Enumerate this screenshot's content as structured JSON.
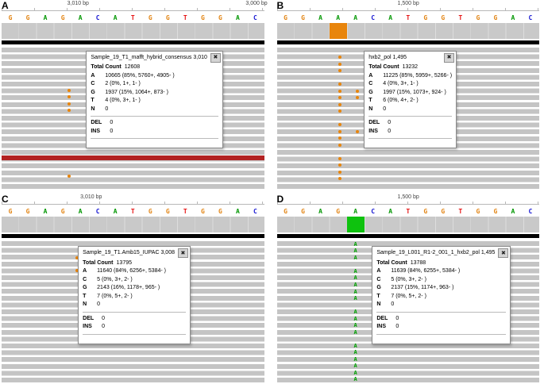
{
  "colors": {
    "base_A": "#009600",
    "base_C": "#1414d2",
    "base_G": "#e28413",
    "base_T": "#e61313",
    "coverage_gray": "#c9c9c9",
    "read_gray": "#c4c4c4",
    "mismatch_orange": "#e8850c",
    "mismatch_green": "#00a000",
    "coverage_highlight_b": "#e8850c",
    "coverage_highlight_d": "#0ec20e",
    "discordant_read_red": "#b22222"
  },
  "panels": [
    {
      "label": "A",
      "ruler_center": "3,010 bp",
      "ruler_right": "3,000 bp",
      "sequence": [
        "G",
        "G",
        "A",
        "G",
        "A",
        "C",
        "A",
        "T",
        "G",
        "G",
        "T",
        "G",
        "G",
        "A",
        "C"
      ],
      "popup": {
        "title": "Sample_19_T1_mafft_hybrid_consensus 3,010",
        "close_glyph": "✖",
        "total_label": "Total Count",
        "total_value": "12608",
        "counts": [
          {
            "base": "A",
            "value": "10665 (85%, 5760+, 4905- )"
          },
          {
            "base": "C",
            "value": "2 (0%, 1+, 1- )"
          },
          {
            "base": "G",
            "value": "1937 (15%, 1064+, 873- )"
          },
          {
            "base": "T",
            "value": "4 (0%, 3+, 1- )"
          },
          {
            "base": "N",
            "value": "0"
          }
        ],
        "del_label": "DEL",
        "del_value": "0",
        "ins_label": "INS",
        "ins_value": "0"
      },
      "markers": [
        {
          "x": 25.7,
          "y": 29.0,
          "color": "#e8850c"
        },
        {
          "x": 25.7,
          "y": 33.8,
          "color": "#e8850c"
        },
        {
          "x": 25.7,
          "y": 38.6,
          "color": "#e8850c"
        },
        {
          "x": 25.7,
          "y": 43.4,
          "color": "#e8850c"
        },
        {
          "x": 25.7,
          "y": 90.0,
          "color": "#e8850c"
        }
      ]
    },
    {
      "label": "B",
      "ruler_center": "1,500 bp",
      "sequence": [
        "G",
        "G",
        "A",
        "A",
        "A",
        "C",
        "A",
        "T",
        "G",
        "G",
        "T",
        "G",
        "G",
        "A",
        "C"
      ],
      "popup": {
        "title": "hxb2_pol 1,495",
        "close_glyph": "✖",
        "total_label": "Total Count",
        "total_value": "13232",
        "counts": [
          {
            "base": "A",
            "value": "11225 (85%, 5959+, 5266- )"
          },
          {
            "base": "C",
            "value": "4 (0%, 3+, 1- )"
          },
          {
            "base": "G",
            "value": "1997 (15%, 1073+, 924- )"
          },
          {
            "base": "T",
            "value": "6 (0%, 4+, 2- )"
          },
          {
            "base": "N",
            "value": "0"
          }
        ],
        "del_label": "DEL",
        "del_value": "0",
        "ins_label": "INS",
        "ins_value": "0"
      },
      "markers": [
        {
          "x": 24.0,
          "y": 5.6,
          "color": "#e8850c"
        },
        {
          "x": 24.0,
          "y": 10.4,
          "color": "#e8850c"
        },
        {
          "x": 24.0,
          "y": 15.2,
          "color": "#e8850c"
        },
        {
          "x": 24.0,
          "y": 24.7,
          "color": "#e8850c"
        },
        {
          "x": 24.0,
          "y": 29.5,
          "color": "#e8850c"
        },
        {
          "x": 24.0,
          "y": 34.3,
          "color": "#e8850c"
        },
        {
          "x": 24.0,
          "y": 39.1,
          "color": "#e8850c"
        },
        {
          "x": 24.0,
          "y": 43.8,
          "color": "#e8850c"
        },
        {
          "x": 24.0,
          "y": 53.4,
          "color": "#e8850c"
        },
        {
          "x": 24.0,
          "y": 58.2,
          "color": "#e8850c"
        },
        {
          "x": 24.0,
          "y": 62.9,
          "color": "#e8850c"
        },
        {
          "x": 24.0,
          "y": 67.7,
          "color": "#e8850c"
        },
        {
          "x": 24.0,
          "y": 77.3,
          "color": "#e8850c"
        },
        {
          "x": 24.0,
          "y": 82.1,
          "color": "#e8850c"
        },
        {
          "x": 24.0,
          "y": 86.8,
          "color": "#e8850c"
        },
        {
          "x": 24.0,
          "y": 91.6,
          "color": "#e8850c"
        },
        {
          "x": 30.7,
          "y": 29.5,
          "color": "#e8850c"
        },
        {
          "x": 30.7,
          "y": 34.3,
          "color": "#e8850c"
        },
        {
          "x": 30.7,
          "y": 58.2,
          "color": "#e8850c"
        }
      ]
    },
    {
      "label": "C",
      "ruler_center": "3,010 bp",
      "sequence": [
        "G",
        "G",
        "A",
        "G",
        "A",
        "C",
        "A",
        "T",
        "G",
        "G",
        "T",
        "G",
        "G",
        "A",
        "C"
      ],
      "popup": {
        "title": "Sample_19_T1.Amb15_IUPAC 3,008",
        "close_glyph": "✖",
        "total_label": "Total Count",
        "total_value": "13795",
        "counts": [
          {
            "base": "A",
            "value": "11640 (84%, 6256+, 5384- )"
          },
          {
            "base": "C",
            "value": "5 (0%, 3+, 2- )"
          },
          {
            "base": "G",
            "value": "2143 (16%, 1178+, 965- )"
          },
          {
            "base": "T",
            "value": "7 (0%, 5+, 2- )"
          },
          {
            "base": "N",
            "value": "0"
          }
        ],
        "del_label": "DEL",
        "del_value": "0",
        "ins_label": "INS",
        "ins_value": "0"
      },
      "markers": [
        {
          "x": 28.7,
          "y": 10.4,
          "color": "#e8850c"
        },
        {
          "x": 28.7,
          "y": 19.9,
          "color": "#e8850c"
        }
      ]
    },
    {
      "label": "D",
      "ruler_center": "1,500 bp",
      "sequence": [
        "G",
        "G",
        "A",
        "G",
        "A",
        "C",
        "A",
        "T",
        "G",
        "G",
        "T",
        "G",
        "G",
        "A",
        "C"
      ],
      "popup": {
        "title": "Sample_19_L001_R1-2_001_1_hxb2_pol 1,495",
        "close_glyph": "✖",
        "total_label": "Total Count",
        "total_value": "13788",
        "counts": [
          {
            "base": "A",
            "value": "11639 (84%, 6255+, 5384- )"
          },
          {
            "base": "C",
            "value": "5 (0%, 3+, 2- )"
          },
          {
            "base": "G",
            "value": "2137 (15%, 1174+, 963- )"
          },
          {
            "base": "T",
            "value": "7 (0%, 5+, 2- )"
          },
          {
            "base": "N",
            "value": "0"
          }
        ],
        "del_label": "DEL",
        "del_value": "0",
        "ins_label": "INS",
        "ins_value": "0"
      },
      "markers": [
        {
          "x": 30.0,
          "y": 0.8,
          "char": "A",
          "color": "#00a000"
        },
        {
          "x": 30.0,
          "y": 5.3,
          "char": "A",
          "color": "#00a000"
        },
        {
          "x": 30.0,
          "y": 10.1,
          "char": "A",
          "color": "#00a000"
        },
        {
          "x": 30.0,
          "y": 19.7,
          "char": "A",
          "color": "#00a000"
        },
        {
          "x": 30.0,
          "y": 24.4,
          "char": "A",
          "color": "#00a000"
        },
        {
          "x": 30.0,
          "y": 29.2,
          "char": "A",
          "color": "#00a000"
        },
        {
          "x": 30.0,
          "y": 34.0,
          "char": "A",
          "color": "#00a000"
        },
        {
          "x": 30.0,
          "y": 38.8,
          "char": "A",
          "color": "#00a000"
        },
        {
          "x": 30.0,
          "y": 48.3,
          "char": "A",
          "color": "#00a000"
        },
        {
          "x": 30.0,
          "y": 53.1,
          "char": "A",
          "color": "#00a000"
        },
        {
          "x": 30.0,
          "y": 57.9,
          "char": "A",
          "color": "#00a000"
        },
        {
          "x": 30.0,
          "y": 62.7,
          "char": "A",
          "color": "#00a000"
        },
        {
          "x": 30.0,
          "y": 72.2,
          "char": "A",
          "color": "#00a000"
        },
        {
          "x": 30.0,
          "y": 77.0,
          "char": "A",
          "color": "#00a000"
        },
        {
          "x": 30.0,
          "y": 81.8,
          "char": "A",
          "color": "#00a000"
        },
        {
          "x": 30.0,
          "y": 86.6,
          "char": "A",
          "color": "#00a000"
        },
        {
          "x": 30.0,
          "y": 91.3,
          "char": "A",
          "color": "#00a000"
        },
        {
          "x": 30.0,
          "y": 96.1,
          "char": "A",
          "color": "#00a000"
        }
      ]
    }
  ]
}
